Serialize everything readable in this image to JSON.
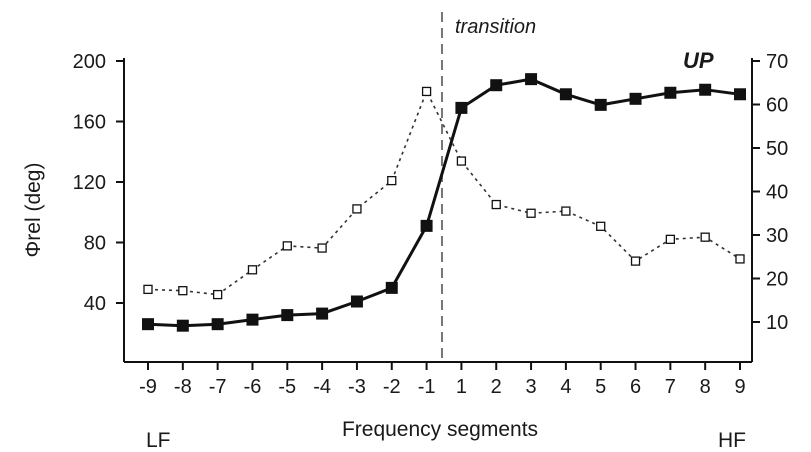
{
  "chart_data": {
    "type": "line",
    "title": "",
    "x": [
      "-9",
      "-8",
      "-7",
      "-6",
      "-5",
      "-4",
      "-3",
      "-2",
      "-1",
      "1",
      "2",
      "3",
      "4",
      "5",
      "6",
      "7",
      "8",
      "9"
    ],
    "xlabel": "Frequency segments",
    "ylabel_left": "Φrel (deg)",
    "ylim_left": [
      0,
      200
    ],
    "yticks_left": [
      "40",
      "80",
      "120",
      "160",
      "200"
    ],
    "ylim_right": [
      0,
      70
    ],
    "yticks_right": [
      "10",
      "20",
      "30",
      "40",
      "50",
      "60",
      "70"
    ],
    "series": [
      {
        "name": "",
        "axis": "left",
        "style": "solid, filled squares",
        "color": "#111111",
        "values": [
          26,
          25,
          26,
          29,
          32,
          33,
          41,
          50,
          91,
          169,
          184,
          188,
          178,
          171,
          175,
          179,
          181,
          178
        ]
      },
      {
        "name": "",
        "axis": "right",
        "style": "dotted, open squares",
        "color": "#333333",
        "values": [
          17.5,
          17.2,
          16.3,
          22,
          27.5,
          27,
          36,
          42.5,
          63,
          47,
          37,
          35,
          35.5,
          32,
          24,
          29,
          29.5,
          24.5
        ]
      }
    ],
    "annotations": {
      "transition": "transition",
      "up": "UP",
      "lf": "LF",
      "hf": "HF"
    },
    "grid": false,
    "transition_x": "between -1 and 1"
  }
}
